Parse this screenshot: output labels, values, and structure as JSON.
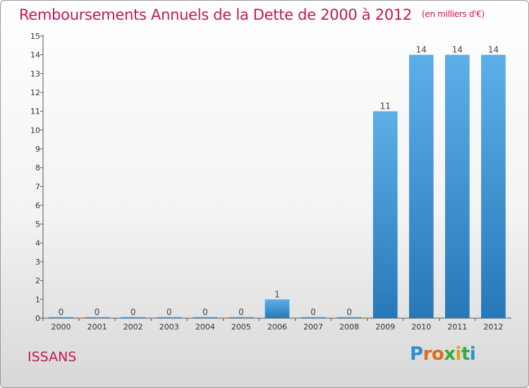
{
  "chart_data": {
    "type": "bar",
    "title": "Remboursements Annuels de la Dette de 2000 à 2012",
    "unit_note": "(en milliers d'€)",
    "categories": [
      "2000",
      "2001",
      "2002",
      "2003",
      "2004",
      "2005",
      "2006",
      "2007",
      "2008",
      "2009",
      "2010",
      "2011",
      "2012"
    ],
    "values": [
      0,
      0,
      0,
      0,
      0,
      0,
      1,
      0,
      0,
      11,
      14,
      14,
      14
    ],
    "value_labels": [
      "0",
      "0",
      "0",
      "0",
      "0",
      "0",
      "1",
      "0",
      "0",
      "11",
      "14",
      "14",
      "14"
    ],
    "ylim": [
      0,
      15
    ],
    "yticks": [
      0,
      1,
      2,
      3,
      4,
      5,
      6,
      7,
      8,
      9,
      10,
      11,
      12,
      13,
      14,
      15
    ],
    "grid": false,
    "bar_color_top": "#5dafe8",
    "bar_color_bottom": "#2878b8"
  },
  "footer": {
    "place": "ISSANS",
    "logo_letters": [
      "P",
      "r",
      "o",
      "x",
      "i",
      "t",
      "i"
    ],
    "logo_colors": [
      "#2a8fd6",
      "#e06a1a",
      "#e06a1a",
      "#3aa845",
      "#d6a21a",
      "#3aa845",
      "#2a8fd6"
    ]
  }
}
